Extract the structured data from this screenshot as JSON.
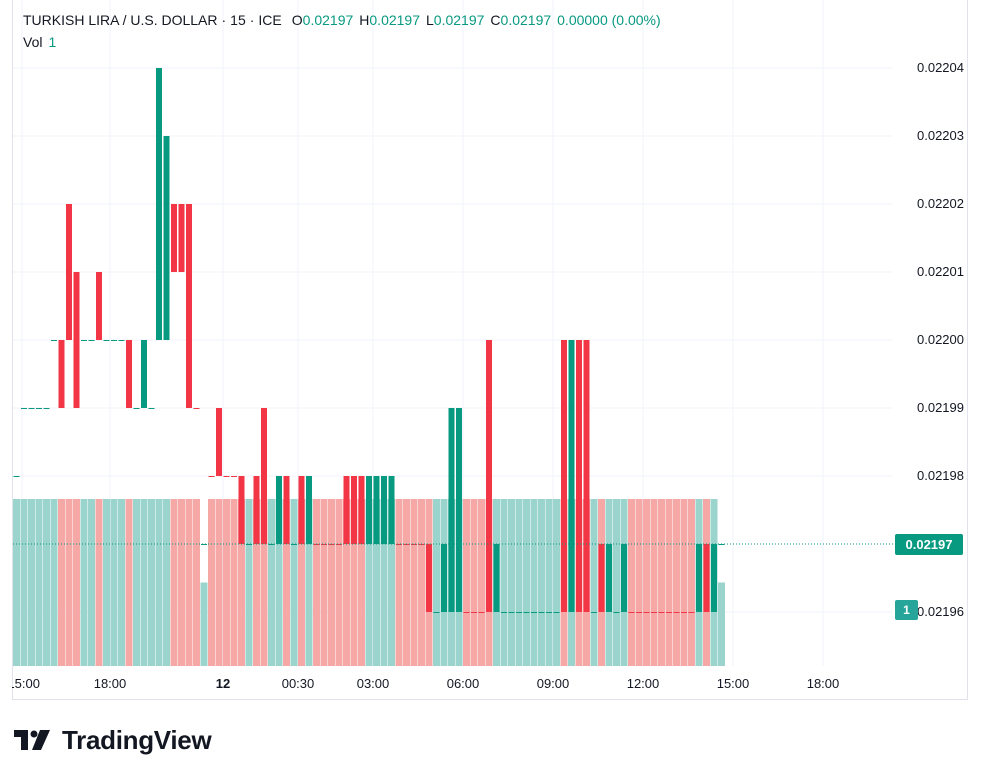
{
  "header": {
    "symbol": "TURKISH LIRA / U.S. DOLLAR",
    "interval": "15",
    "exchange": "ICE",
    "open_label": "O",
    "open": "0.02197",
    "high_label": "H",
    "high": "0.02197",
    "low_label": "L",
    "low": "0.02197",
    "close_label": "C",
    "close": "0.02197",
    "change": "0.00000 (0.00%)",
    "vol_label": "Vol",
    "vol": "1"
  },
  "price_tag": "0.02197",
  "volume_tag": "1",
  "brand": {
    "name": "TradingView"
  },
  "colors": {
    "up": "#089981",
    "down": "#f23645",
    "vol_up": "#9bd4cd",
    "vol_down": "#f5a8a5",
    "grid": "#f0f3fa"
  },
  "chart_data": {
    "type": "candlestick",
    "y_ticks": [
      "0.02204",
      "0.02203",
      "0.02202",
      "0.02201",
      "0.02200",
      "0.02199",
      "0.02198",
      "0.02196"
    ],
    "y_tick_values": [
      0.02204,
      0.02203,
      0.02202,
      0.02201,
      0.022,
      0.02199,
      0.02198,
      0.02196
    ],
    "ylim": [
      0.021952,
      0.022045
    ],
    "x_ticks": [
      "15:00",
      "18:00",
      "12",
      "00:30",
      "03:00",
      "06:00",
      "09:00",
      "12:00",
      "15:00",
      "18:00"
    ],
    "last_price": 0.02197,
    "candles": [
      {
        "o": 0.02198,
        "c": 0.02198,
        "h": 0.02198,
        "l": 0.02198,
        "v": 2,
        "d": "up"
      },
      {
        "o": 0.02199,
        "c": 0.02199,
        "h": 0.02199,
        "l": 0.02199,
        "v": 2,
        "d": "up"
      },
      {
        "o": 0.02199,
        "c": 0.02199,
        "h": 0.02199,
        "l": 0.02199,
        "v": 2,
        "d": "up"
      },
      {
        "o": 0.02199,
        "c": 0.02199,
        "h": 0.02199,
        "l": 0.02199,
        "v": 2,
        "d": "up"
      },
      {
        "o": 0.02199,
        "c": 0.02199,
        "h": 0.02199,
        "l": 0.02199,
        "v": 2,
        "d": "up"
      },
      {
        "o": 0.022,
        "c": 0.022,
        "h": 0.022,
        "l": 0.022,
        "v": 2,
        "d": "up"
      },
      {
        "o": 0.022,
        "c": 0.02199,
        "h": 0.022,
        "l": 0.02199,
        "v": 2,
        "d": "down"
      },
      {
        "o": 0.02202,
        "c": 0.022,
        "h": 0.02202,
        "l": 0.022,
        "v": 2,
        "d": "down"
      },
      {
        "o": 0.02201,
        "c": 0.02199,
        "h": 0.02201,
        "l": 0.02199,
        "v": 2,
        "d": "down"
      },
      {
        "o": 0.022,
        "c": 0.022,
        "h": 0.022,
        "l": 0.022,
        "v": 2,
        "d": "up"
      },
      {
        "o": 0.022,
        "c": 0.022,
        "h": 0.022,
        "l": 0.022,
        "v": 2,
        "d": "up"
      },
      {
        "o": 0.02201,
        "c": 0.022,
        "h": 0.02201,
        "l": 0.022,
        "v": 2,
        "d": "down"
      },
      {
        "o": 0.022,
        "c": 0.022,
        "h": 0.022,
        "l": 0.022,
        "v": 2,
        "d": "up"
      },
      {
        "o": 0.022,
        "c": 0.022,
        "h": 0.022,
        "l": 0.022,
        "v": 2,
        "d": "up"
      },
      {
        "o": 0.022,
        "c": 0.022,
        "h": 0.022,
        "l": 0.022,
        "v": 2,
        "d": "up"
      },
      {
        "o": 0.022,
        "c": 0.02199,
        "h": 0.022,
        "l": 0.02199,
        "v": 2,
        "d": "down"
      },
      {
        "o": 0.02199,
        "c": 0.02199,
        "h": 0.02199,
        "l": 0.02199,
        "v": 2,
        "d": "up"
      },
      {
        "o": 0.02199,
        "c": 0.022,
        "h": 0.022,
        "l": 0.02199,
        "v": 2,
        "d": "up"
      },
      {
        "o": 0.02199,
        "c": 0.02199,
        "h": 0.02199,
        "l": 0.02199,
        "v": 2,
        "d": "up"
      },
      {
        "o": 0.022,
        "c": 0.02204,
        "h": 0.02204,
        "l": 0.022,
        "v": 2,
        "d": "up"
      },
      {
        "o": 0.022,
        "c": 0.02203,
        "h": 0.02203,
        "l": 0.022,
        "v": 2,
        "d": "up"
      },
      {
        "o": 0.02202,
        "c": 0.02201,
        "h": 0.02202,
        "l": 0.02201,
        "v": 2,
        "d": "down"
      },
      {
        "o": 0.02202,
        "c": 0.02201,
        "h": 0.02202,
        "l": 0.02201,
        "v": 2,
        "d": "down"
      },
      {
        "o": 0.02202,
        "c": 0.02199,
        "h": 0.02202,
        "l": 0.02199,
        "v": 2,
        "d": "down"
      },
      {
        "o": 0.02199,
        "c": 0.02199,
        "h": 0.02199,
        "l": 0.02199,
        "v": 2,
        "d": "down"
      },
      {
        "o": 0.02197,
        "c": 0.02197,
        "h": 0.02197,
        "l": 0.02197,
        "v": 1,
        "d": "up"
      },
      {
        "o": 0.02198,
        "c": 0.02198,
        "h": 0.02198,
        "l": 0.02198,
        "v": 2,
        "d": "down"
      },
      {
        "o": 0.02199,
        "c": 0.02198,
        "h": 0.02199,
        "l": 0.02198,
        "v": 2,
        "d": "down"
      },
      {
        "o": 0.02198,
        "c": 0.02198,
        "h": 0.02198,
        "l": 0.02198,
        "v": 2,
        "d": "down"
      },
      {
        "o": 0.02198,
        "c": 0.02198,
        "h": 0.02198,
        "l": 0.02198,
        "v": 2,
        "d": "down"
      },
      {
        "o": 0.02198,
        "c": 0.02197,
        "h": 0.02198,
        "l": 0.02197,
        "v": 2,
        "d": "down"
      },
      {
        "o": 0.02197,
        "c": 0.02197,
        "h": 0.02197,
        "l": 0.02197,
        "v": 2,
        "d": "up"
      },
      {
        "o": 0.02198,
        "c": 0.02197,
        "h": 0.02198,
        "l": 0.02197,
        "v": 2,
        "d": "down"
      },
      {
        "o": 0.02199,
        "c": 0.02197,
        "h": 0.02199,
        "l": 0.02197,
        "v": 2,
        "d": "down"
      },
      {
        "o": 0.02197,
        "c": 0.02197,
        "h": 0.02197,
        "l": 0.02197,
        "v": 2,
        "d": "up"
      },
      {
        "o": 0.02197,
        "c": 0.02198,
        "h": 0.02198,
        "l": 0.02197,
        "v": 2,
        "d": "up"
      },
      {
        "o": 0.02198,
        "c": 0.02197,
        "h": 0.02198,
        "l": 0.02197,
        "v": 2,
        "d": "down"
      },
      {
        "o": 0.02197,
        "c": 0.02197,
        "h": 0.02197,
        "l": 0.02197,
        "v": 2,
        "d": "up"
      },
      {
        "o": 0.02198,
        "c": 0.02197,
        "h": 0.02198,
        "l": 0.02197,
        "v": 2,
        "d": "down"
      },
      {
        "o": 0.02197,
        "c": 0.02198,
        "h": 0.02198,
        "l": 0.02197,
        "v": 2,
        "d": "up"
      },
      {
        "o": 0.02197,
        "c": 0.02197,
        "h": 0.02197,
        "l": 0.02197,
        "v": 2,
        "d": "down"
      },
      {
        "o": 0.02197,
        "c": 0.02197,
        "h": 0.02197,
        "l": 0.02197,
        "v": 2,
        "d": "down"
      },
      {
        "o": 0.02197,
        "c": 0.02197,
        "h": 0.02197,
        "l": 0.02197,
        "v": 2,
        "d": "down"
      },
      {
        "o": 0.02197,
        "c": 0.02197,
        "h": 0.02197,
        "l": 0.02197,
        "v": 2,
        "d": "down"
      },
      {
        "o": 0.02198,
        "c": 0.02197,
        "h": 0.02198,
        "l": 0.02197,
        "v": 2,
        "d": "down"
      },
      {
        "o": 0.02198,
        "c": 0.02197,
        "h": 0.02198,
        "l": 0.02197,
        "v": 2,
        "d": "down"
      },
      {
        "o": 0.02198,
        "c": 0.02197,
        "h": 0.02198,
        "l": 0.02197,
        "v": 2,
        "d": "down"
      },
      {
        "o": 0.02197,
        "c": 0.02198,
        "h": 0.02198,
        "l": 0.02197,
        "v": 2,
        "d": "up"
      },
      {
        "o": 0.02197,
        "c": 0.02198,
        "h": 0.02198,
        "l": 0.02197,
        "v": 2,
        "d": "up"
      },
      {
        "o": 0.02197,
        "c": 0.02198,
        "h": 0.02198,
        "l": 0.02197,
        "v": 2,
        "d": "up"
      },
      {
        "o": 0.02197,
        "c": 0.02198,
        "h": 0.02198,
        "l": 0.02197,
        "v": 2,
        "d": "up"
      },
      {
        "o": 0.02197,
        "c": 0.02197,
        "h": 0.02197,
        "l": 0.02197,
        "v": 2,
        "d": "down"
      },
      {
        "o": 0.02197,
        "c": 0.02197,
        "h": 0.02197,
        "l": 0.02197,
        "v": 2,
        "d": "down"
      },
      {
        "o": 0.02197,
        "c": 0.02197,
        "h": 0.02197,
        "l": 0.02197,
        "v": 2,
        "d": "down"
      },
      {
        "o": 0.02197,
        "c": 0.02197,
        "h": 0.02197,
        "l": 0.02197,
        "v": 2,
        "d": "down"
      },
      {
        "o": 0.02197,
        "c": 0.02196,
        "h": 0.02197,
        "l": 0.02196,
        "v": 2,
        "d": "down"
      },
      {
        "o": 0.02196,
        "c": 0.02196,
        "h": 0.02196,
        "l": 0.02196,
        "v": 2,
        "d": "up"
      },
      {
        "o": 0.02196,
        "c": 0.02197,
        "h": 0.02197,
        "l": 0.02196,
        "v": 2,
        "d": "up"
      },
      {
        "o": 0.02196,
        "c": 0.02199,
        "h": 0.02199,
        "l": 0.02196,
        "v": 2,
        "d": "up"
      },
      {
        "o": 0.02196,
        "c": 0.02199,
        "h": 0.02199,
        "l": 0.02196,
        "v": 2,
        "d": "up"
      },
      {
        "o": 0.02196,
        "c": 0.02196,
        "h": 0.02196,
        "l": 0.02196,
        "v": 2,
        "d": "down"
      },
      {
        "o": 0.02196,
        "c": 0.02196,
        "h": 0.02196,
        "l": 0.02196,
        "v": 2,
        "d": "down"
      },
      {
        "o": 0.02196,
        "c": 0.02196,
        "h": 0.02196,
        "l": 0.02196,
        "v": 2,
        "d": "down"
      },
      {
        "o": 0.022,
        "c": 0.02196,
        "h": 0.022,
        "l": 0.02196,
        "v": 2,
        "d": "down"
      },
      {
        "o": 0.02196,
        "c": 0.02197,
        "h": 0.02197,
        "l": 0.02196,
        "v": 2,
        "d": "up"
      },
      {
        "o": 0.02196,
        "c": 0.02196,
        "h": 0.02196,
        "l": 0.02196,
        "v": 2,
        "d": "up"
      },
      {
        "o": 0.02196,
        "c": 0.02196,
        "h": 0.02196,
        "l": 0.02196,
        "v": 2,
        "d": "up"
      },
      {
        "o": 0.02196,
        "c": 0.02196,
        "h": 0.02196,
        "l": 0.02196,
        "v": 2,
        "d": "up"
      },
      {
        "o": 0.02196,
        "c": 0.02196,
        "h": 0.02196,
        "l": 0.02196,
        "v": 2,
        "d": "up"
      },
      {
        "o": 0.02196,
        "c": 0.02196,
        "h": 0.02196,
        "l": 0.02196,
        "v": 2,
        "d": "up"
      },
      {
        "o": 0.02196,
        "c": 0.02196,
        "h": 0.02196,
        "l": 0.02196,
        "v": 2,
        "d": "up"
      },
      {
        "o": 0.02196,
        "c": 0.02196,
        "h": 0.02196,
        "l": 0.02196,
        "v": 2,
        "d": "up"
      },
      {
        "o": 0.02196,
        "c": 0.02196,
        "h": 0.02196,
        "l": 0.02196,
        "v": 2,
        "d": "up"
      },
      {
        "o": 0.022,
        "c": 0.02196,
        "h": 0.022,
        "l": 0.02196,
        "v": 2,
        "d": "down"
      },
      {
        "o": 0.02196,
        "c": 0.022,
        "h": 0.022,
        "l": 0.02196,
        "v": 2,
        "d": "up"
      },
      {
        "o": 0.022,
        "c": 0.02196,
        "h": 0.022,
        "l": 0.02196,
        "v": 2,
        "d": "down"
      },
      {
        "o": 0.022,
        "c": 0.02196,
        "h": 0.022,
        "l": 0.02196,
        "v": 2,
        "d": "down"
      },
      {
        "o": 0.02196,
        "c": 0.02196,
        "h": 0.02196,
        "l": 0.02196,
        "v": 2,
        "d": "up"
      },
      {
        "o": 0.02197,
        "c": 0.02196,
        "h": 0.02197,
        "l": 0.02196,
        "v": 2,
        "d": "down"
      },
      {
        "o": 0.02196,
        "c": 0.02197,
        "h": 0.02197,
        "l": 0.02196,
        "v": 2,
        "d": "up"
      },
      {
        "o": 0.02196,
        "c": 0.02196,
        "h": 0.02196,
        "l": 0.02196,
        "v": 2,
        "d": "up"
      },
      {
        "o": 0.02196,
        "c": 0.02197,
        "h": 0.02197,
        "l": 0.02196,
        "v": 2,
        "d": "up"
      },
      {
        "o": 0.02196,
        "c": 0.02196,
        "h": 0.02196,
        "l": 0.02196,
        "v": 2,
        "d": "down"
      },
      {
        "o": 0.02196,
        "c": 0.02196,
        "h": 0.02196,
        "l": 0.02196,
        "v": 2,
        "d": "down"
      },
      {
        "o": 0.02196,
        "c": 0.02196,
        "h": 0.02196,
        "l": 0.02196,
        "v": 2,
        "d": "down"
      },
      {
        "o": 0.02196,
        "c": 0.02196,
        "h": 0.02196,
        "l": 0.02196,
        "v": 2,
        "d": "down"
      },
      {
        "o": 0.02196,
        "c": 0.02196,
        "h": 0.02196,
        "l": 0.02196,
        "v": 2,
        "d": "down"
      },
      {
        "o": 0.02196,
        "c": 0.02196,
        "h": 0.02196,
        "l": 0.02196,
        "v": 2,
        "d": "down"
      },
      {
        "o": 0.02196,
        "c": 0.02196,
        "h": 0.02196,
        "l": 0.02196,
        "v": 2,
        "d": "down"
      },
      {
        "o": 0.02196,
        "c": 0.02196,
        "h": 0.02196,
        "l": 0.02196,
        "v": 2,
        "d": "down"
      },
      {
        "o": 0.02196,
        "c": 0.02196,
        "h": 0.02196,
        "l": 0.02196,
        "v": 2,
        "d": "down"
      },
      {
        "o": 0.02196,
        "c": 0.02197,
        "h": 0.02197,
        "l": 0.02196,
        "v": 2,
        "d": "up"
      },
      {
        "o": 0.02197,
        "c": 0.02196,
        "h": 0.02197,
        "l": 0.02196,
        "v": 2,
        "d": "down"
      },
      {
        "o": 0.02196,
        "c": 0.02197,
        "h": 0.02197,
        "l": 0.02196,
        "v": 2,
        "d": "up"
      },
      {
        "o": 0.02197,
        "c": 0.02197,
        "h": 0.02197,
        "l": 0.02197,
        "v": 1,
        "d": "up"
      }
    ]
  }
}
